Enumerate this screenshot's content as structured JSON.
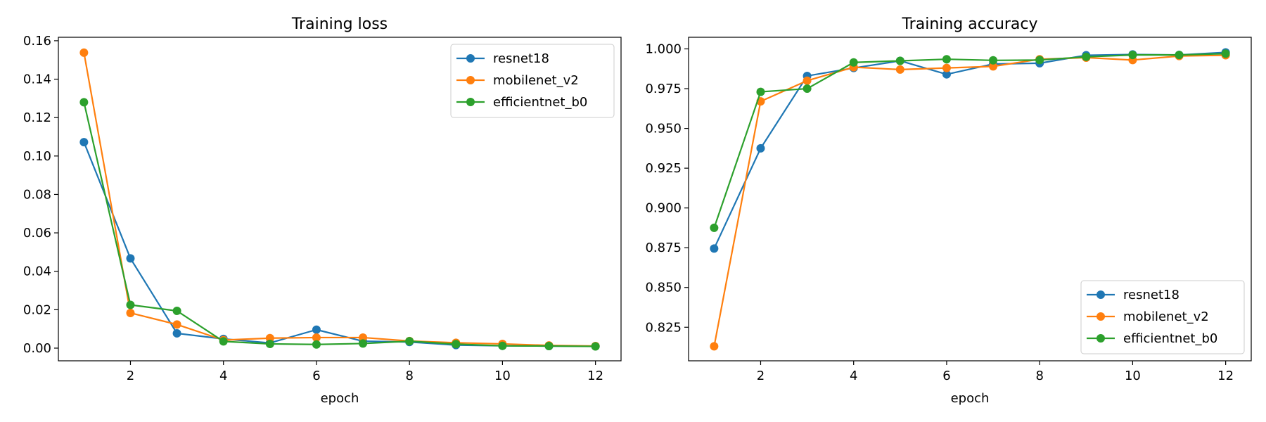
{
  "chart_data": [
    {
      "type": "line",
      "title": "Training loss",
      "xlabel": "epoch",
      "ylabel": "",
      "x": [
        1,
        2,
        3,
        4,
        5,
        6,
        7,
        8,
        9,
        10,
        11,
        12
      ],
      "xlim": [
        0.45,
        12.55
      ],
      "ylim": [
        -0.0066,
        0.1618
      ],
      "xticks": [
        2,
        4,
        6,
        8,
        10,
        12
      ],
      "yticks": [
        0.0,
        0.02,
        0.04,
        0.06,
        0.08,
        0.1,
        0.12,
        0.14,
        0.16
      ],
      "ytick_decimals": 2,
      "grid": false,
      "legend_position": "top-right",
      "series": [
        {
          "name": "resnet18",
          "color": "#1f77b4",
          "values": [
            0.1072,
            0.0467,
            0.0077,
            0.0048,
            0.0027,
            0.0096,
            0.0036,
            0.0032,
            0.0016,
            0.0012,
            0.0011,
            0.001
          ]
        },
        {
          "name": "mobilenet_v2",
          "color": "#ff7f0e",
          "values": [
            0.1538,
            0.0183,
            0.0123,
            0.0042,
            0.0052,
            0.0055,
            0.0055,
            0.0037,
            0.0028,
            0.0022,
            0.0014,
            0.0011
          ]
        },
        {
          "name": "efficientnet_b0",
          "color": "#2ca02c",
          "values": [
            0.128,
            0.0225,
            0.0194,
            0.0035,
            0.0022,
            0.0019,
            0.0024,
            0.0036,
            0.0021,
            0.0012,
            0.0011,
            0.0009
          ]
        }
      ]
    },
    {
      "type": "line",
      "title": "Training accuracy",
      "xlabel": "epoch",
      "ylabel": "",
      "x": [
        1,
        2,
        3,
        4,
        5,
        6,
        7,
        8,
        9,
        10,
        11,
        12
      ],
      "xlim": [
        0.45,
        12.55
      ],
      "ylim": [
        0.8039,
        1.0073
      ],
      "xticks": [
        2,
        4,
        6,
        8,
        10,
        12
      ],
      "yticks": [
        0.825,
        0.85,
        0.875,
        0.9,
        0.925,
        0.95,
        0.975,
        1.0
      ],
      "ytick_decimals": 3,
      "grid": false,
      "legend_position": "bottom-right",
      "series": [
        {
          "name": "resnet18",
          "color": "#1f77b4",
          "values": [
            0.8745,
            0.9375,
            0.983,
            0.988,
            0.9925,
            0.984,
            0.9905,
            0.991,
            0.996,
            0.9965,
            0.9962,
            0.9978
          ]
        },
        {
          "name": "mobilenet_v2",
          "color": "#ff7f0e",
          "values": [
            0.813,
            0.967,
            0.98,
            0.9885,
            0.987,
            0.988,
            0.989,
            0.9935,
            0.9945,
            0.993,
            0.9955,
            0.996
          ]
        },
        {
          "name": "efficientnet_b0",
          "color": "#2ca02c",
          "values": [
            0.8875,
            0.973,
            0.975,
            0.9915,
            0.9925,
            0.9935,
            0.9928,
            0.993,
            0.995,
            0.9962,
            0.9962,
            0.997
          ]
        }
      ]
    }
  ]
}
